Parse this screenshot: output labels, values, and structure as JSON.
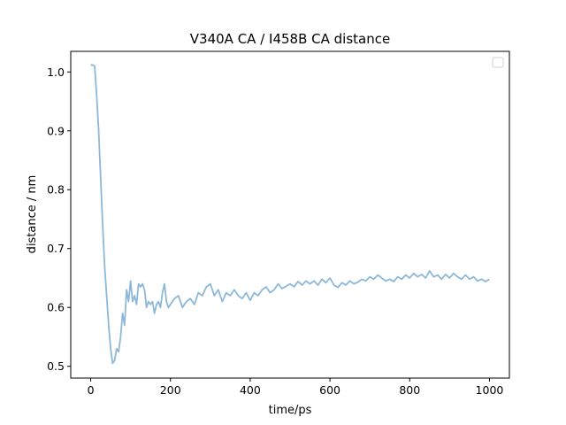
{
  "chart_data": {
    "type": "line",
    "title": "V340A CA / I458B CA distance",
    "xlabel": "time/ps",
    "ylabel": "distance / nm",
    "xlim": [
      -50,
      1050
    ],
    "ylim": [
      0.48,
      1.035
    ],
    "xticks": [
      "0",
      "200",
      "400",
      "600",
      "800",
      "1000"
    ],
    "yticks": [
      "0.5",
      "0.6",
      "0.7",
      "0.8",
      "0.9",
      "1.0"
    ],
    "grid": false,
    "legend": "top-right (empty)",
    "line_color": "#8db8d8",
    "series": [
      {
        "x": [
          0,
          5,
          10,
          15,
          20,
          25,
          30,
          35,
          40,
          45,
          50,
          55,
          60,
          65,
          70,
          75,
          80,
          85,
          90,
          95,
          100,
          105,
          110,
          115,
          120,
          125,
          130,
          135,
          140,
          145,
          150,
          155,
          160,
          165,
          170,
          175,
          180,
          185,
          190,
          195,
          200,
          210,
          220,
          230,
          240,
          250,
          260,
          270,
          280,
          290,
          300,
          310,
          320,
          330,
          340,
          350,
          360,
          370,
          380,
          390,
          400,
          410,
          420,
          430,
          440,
          450,
          460,
          470,
          480,
          490,
          500,
          510,
          520,
          530,
          540,
          550,
          560,
          570,
          580,
          590,
          600,
          610,
          620,
          630,
          640,
          650,
          660,
          670,
          680,
          690,
          700,
          710,
          720,
          730,
          740,
          750,
          760,
          770,
          780,
          790,
          800,
          810,
          820,
          830,
          840,
          850,
          860,
          870,
          880,
          890,
          900,
          910,
          920,
          930,
          940,
          950,
          960,
          970,
          980,
          990,
          1000
        ],
        "y": [
          1.012,
          1.012,
          1.01,
          0.96,
          0.9,
          0.82,
          0.74,
          0.67,
          0.62,
          0.57,
          0.53,
          0.505,
          0.51,
          0.53,
          0.525,
          0.55,
          0.59,
          0.57,
          0.63,
          0.61,
          0.645,
          0.61,
          0.62,
          0.605,
          0.64,
          0.635,
          0.64,
          0.63,
          0.6,
          0.61,
          0.605,
          0.61,
          0.59,
          0.605,
          0.61,
          0.6,
          0.625,
          0.64,
          0.61,
          0.6,
          0.605,
          0.615,
          0.62,
          0.6,
          0.61,
          0.615,
          0.605,
          0.625,
          0.62,
          0.635,
          0.64,
          0.62,
          0.63,
          0.61,
          0.625,
          0.62,
          0.63,
          0.62,
          0.615,
          0.625,
          0.612,
          0.625,
          0.62,
          0.63,
          0.635,
          0.625,
          0.63,
          0.64,
          0.632,
          0.636,
          0.64,
          0.635,
          0.644,
          0.638,
          0.645,
          0.64,
          0.645,
          0.638,
          0.648,
          0.642,
          0.65,
          0.638,
          0.634,
          0.642,
          0.638,
          0.645,
          0.64,
          0.643,
          0.648,
          0.645,
          0.652,
          0.648,
          0.655,
          0.65,
          0.645,
          0.648,
          0.644,
          0.652,
          0.648,
          0.655,
          0.65,
          0.658,
          0.652,
          0.656,
          0.65,
          0.662,
          0.652,
          0.655,
          0.648,
          0.656,
          0.65,
          0.658,
          0.652,
          0.648,
          0.655,
          0.648,
          0.652,
          0.645,
          0.648,
          0.644,
          0.648
        ]
      }
    ]
  }
}
